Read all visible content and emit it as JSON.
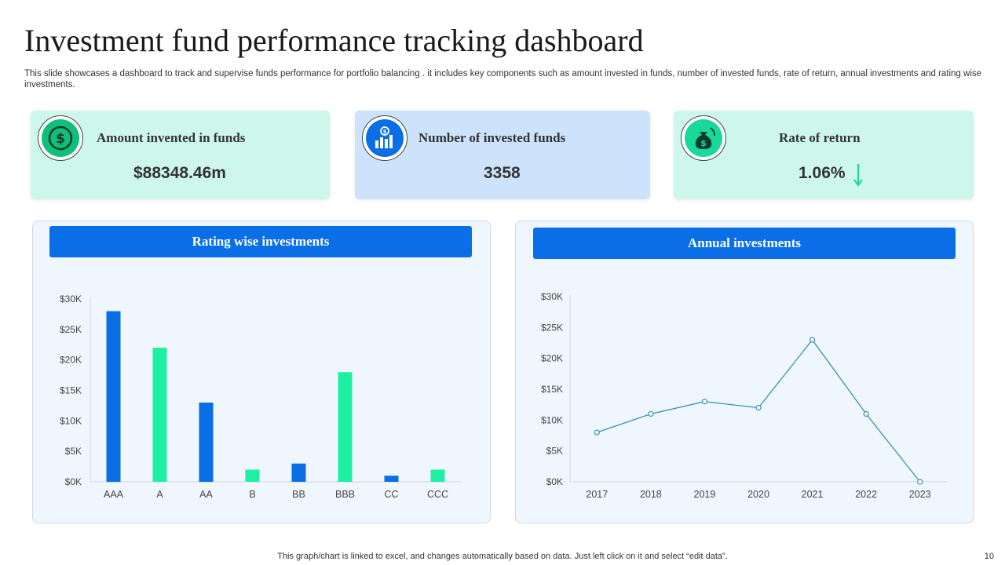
{
  "page": {
    "title": "Investment fund performance tracking dashboard",
    "subtitle": "This slide showcases a dashboard to track and supervise funds performance for portfolio balancing . it includes key components such as amount invested in funds, number of invested funds, rate of return, annual investments and rating wise investments.",
    "footer_note": "This graph/chart is linked to excel,  and changes automatically based on data. Just left click on it and select “edit data”.",
    "page_number": "10"
  },
  "kpis": [
    {
      "label": "Amount invented in funds",
      "value": "$88348.46m",
      "icon": "dollar-coin-icon",
      "color": "#0fbf7a"
    },
    {
      "label": "Number of invested funds",
      "value": "3358",
      "icon": "growth-bars-icon",
      "color": "#0a6fe6"
    },
    {
      "label": "Rate of return",
      "value": "1.06%",
      "icon": "money-bag-icon",
      "trend": "down-arrow-icon",
      "color": "#18d99a"
    }
  ],
  "charts": {
    "rating": {
      "header": "Rating wise investments"
    },
    "annual": {
      "header": "Annual investments"
    }
  },
  "colors": {
    "blue": "#0a6fe6",
    "green": "#1ef0a2",
    "line": "#3a8fb5"
  },
  "chart_data": [
    {
      "type": "bar",
      "title": "Rating wise investments",
      "categories": [
        "AAA",
        "A",
        "AA",
        "B",
        "BB",
        "BBB",
        "CC",
        "CCC"
      ],
      "values": [
        28000,
        22000,
        13000,
        2000,
        3000,
        18000,
        1000,
        2000
      ],
      "bar_colors": [
        "#0a6fe6",
        "#1ef0a2",
        "#0a6fe6",
        "#1ef0a2",
        "#0a6fe6",
        "#1ef0a2",
        "#0a6fe6",
        "#1ef0a2"
      ],
      "yticks": [
        "$0K",
        "$5K",
        "$10K",
        "$15K",
        "$20K",
        "$25K",
        "$30K"
      ],
      "ylim": [
        0,
        30000
      ],
      "grid": false
    },
    {
      "type": "line",
      "title": "Annual investments",
      "x": [
        "2017",
        "2018",
        "2019",
        "2020",
        "2021",
        "2022",
        "2023"
      ],
      "values": [
        8000,
        11000,
        13000,
        12000,
        23000,
        11000,
        0
      ],
      "yticks": [
        "$0K",
        "$5K",
        "$10K",
        "$15K",
        "$20K",
        "$25K",
        "$30K"
      ],
      "ylim": [
        0,
        30000
      ],
      "grid": false
    }
  ]
}
